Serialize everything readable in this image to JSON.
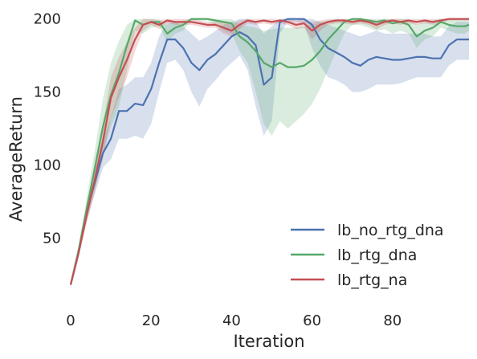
{
  "chart_data": {
    "type": "line",
    "xlabel": "Iteration",
    "ylabel": "AverageReturn",
    "xlim": [
      0,
      99
    ],
    "ylim": [
      10,
      202
    ],
    "xticks": [
      0,
      20,
      40,
      60,
      80
    ],
    "yticks": [
      50,
      100,
      150,
      200
    ],
    "grid": false,
    "legend_position": "lower-right",
    "series": [
      {
        "name": "lb_no_rtg_dna",
        "color": "#4c72b0",
        "x": [
          0,
          2,
          4,
          6,
          8,
          10,
          12,
          14,
          16,
          18,
          20,
          22,
          24,
          26,
          28,
          30,
          32,
          34,
          36,
          38,
          40,
          42,
          44,
          46,
          48,
          50,
          52,
          54,
          56,
          58,
          60,
          62,
          64,
          66,
          68,
          70,
          72,
          74,
          76,
          78,
          80,
          82,
          84,
          86,
          88,
          90,
          92,
          94,
          96,
          98,
          99
        ],
        "y": [
          18,
          40,
          68,
          88,
          108,
          118,
          137,
          137,
          142,
          141,
          152,
          170,
          186,
          186,
          180,
          170,
          165,
          172,
          176,
          182,
          188,
          191,
          188,
          182,
          155,
          160,
          198,
          200,
          200,
          200,
          196,
          186,
          180,
          177,
          174,
          170,
          168,
          172,
          174,
          173,
          172,
          172,
          173,
          174,
          174,
          173,
          173,
          182,
          186,
          186,
          186
        ],
        "lower": [
          17,
          38,
          62,
          80,
          98,
          104,
          118,
          118,
          120,
          118,
          128,
          150,
          170,
          172,
          165,
          150,
          140,
          152,
          158,
          165,
          170,
          175,
          165,
          140,
          120,
          130,
          190,
          198,
          198,
          197,
          180,
          168,
          160,
          158,
          155,
          150,
          150,
          152,
          155,
          155,
          155,
          156,
          158,
          160,
          160,
          160,
          160,
          168,
          172,
          172,
          172
        ],
        "upper": [
          19,
          42,
          74,
          96,
          118,
          132,
          152,
          155,
          160,
          160,
          170,
          188,
          198,
          198,
          195,
          190,
          185,
          188,
          192,
          196,
          198,
          200,
          200,
          198,
          190,
          195,
          200,
          200,
          200,
          200,
          200,
          198,
          196,
          194,
          192,
          190,
          188,
          190,
          192,
          190,
          190,
          190,
          190,
          190,
          190,
          188,
          188,
          195,
          198,
          198,
          198
        ]
      },
      {
        "name": "lb_rtg_dna",
        "color": "#55a868",
        "x": [
          0,
          2,
          4,
          6,
          8,
          10,
          12,
          14,
          16,
          18,
          20,
          22,
          24,
          26,
          28,
          30,
          32,
          34,
          36,
          38,
          40,
          42,
          44,
          46,
          48,
          50,
          52,
          54,
          56,
          58,
          60,
          62,
          64,
          66,
          68,
          70,
          72,
          74,
          76,
          78,
          80,
          82,
          84,
          86,
          88,
          90,
          92,
          94,
          96,
          98,
          99
        ],
        "y": [
          18,
          42,
          70,
          98,
          126,
          148,
          163,
          182,
          199,
          196,
          198,
          198,
          190,
          194,
          196,
          200,
          200,
          200,
          199,
          198,
          197,
          188,
          184,
          178,
          170,
          167,
          170,
          167,
          167,
          168,
          172,
          178,
          186,
          192,
          198,
          200,
          200,
          199,
          198,
          199,
          197,
          198,
          196,
          188,
          192,
          194,
          198,
          196,
          195,
          195,
          196
        ],
        "lower": [
          17,
          40,
          62,
          85,
          108,
          126,
          140,
          165,
          192,
          190,
          194,
          195,
          184,
          190,
          192,
          199,
          199,
          199,
          196,
          192,
          190,
          178,
          170,
          150,
          128,
          120,
          130,
          125,
          130,
          135,
          142,
          152,
          165,
          178,
          190,
          196,
          196,
          194,
          192,
          193,
          190,
          192,
          190,
          180,
          186,
          188,
          194,
          192,
          190,
          190,
          192
        ],
        "upper": [
          19,
          44,
          78,
          110,
          145,
          170,
          185,
          196,
          200,
          200,
          200,
          200,
          196,
          198,
          199,
          200,
          200,
          200,
          200,
          200,
          200,
          196,
          195,
          194,
          192,
          193,
          194,
          194,
          194,
          195,
          196,
          198,
          199,
          200,
          200,
          200,
          200,
          200,
          200,
          200,
          200,
          200,
          200,
          196,
          198,
          199,
          200,
          200,
          200,
          200,
          200
        ]
      },
      {
        "name": "lb_rtg_na",
        "color": "#c44e52",
        "x": [
          0,
          2,
          4,
          6,
          8,
          10,
          12,
          14,
          16,
          18,
          20,
          22,
          24,
          26,
          28,
          30,
          32,
          34,
          36,
          38,
          40,
          42,
          44,
          46,
          48,
          50,
          52,
          54,
          56,
          58,
          60,
          62,
          64,
          66,
          68,
          70,
          72,
          74,
          76,
          78,
          80,
          82,
          84,
          86,
          88,
          90,
          92,
          94,
          96,
          98,
          99
        ],
        "y": [
          18,
          40,
          66,
          90,
          116,
          146,
          160,
          172,
          186,
          196,
          198,
          196,
          199,
          198,
          198,
          198,
          197,
          196,
          196,
          194,
          192,
          196,
          199,
          198,
          199,
          198,
          199,
          198,
          196,
          197,
          192,
          196,
          198,
          199,
          199,
          198,
          199,
          198,
          196,
          198,
          199,
          198,
          199,
          198,
          199,
          198,
          199,
          200,
          200,
          200,
          200
        ],
        "lower": [
          17,
          38,
          60,
          82,
          104,
          132,
          146,
          160,
          178,
          192,
          196,
          193,
          197,
          196,
          196,
          196,
          195,
          194,
          194,
          190,
          188,
          193,
          197,
          196,
          197,
          196,
          197,
          196,
          193,
          194,
          186,
          192,
          196,
          197,
          197,
          196,
          197,
          196,
          193,
          196,
          197,
          196,
          197,
          196,
          197,
          196,
          197,
          199,
          199,
          199,
          199
        ],
        "upper": [
          19,
          42,
          72,
          98,
          128,
          160,
          174,
          184,
          194,
          200,
          200,
          199,
          200,
          200,
          200,
          200,
          199,
          198,
          198,
          198,
          196,
          199,
          200,
          200,
          200,
          200,
          200,
          200,
          199,
          200,
          198,
          199,
          200,
          200,
          200,
          200,
          200,
          200,
          199,
          200,
          200,
          200,
          200,
          200,
          200,
          200,
          200,
          200,
          200,
          200,
          200
        ]
      }
    ]
  }
}
